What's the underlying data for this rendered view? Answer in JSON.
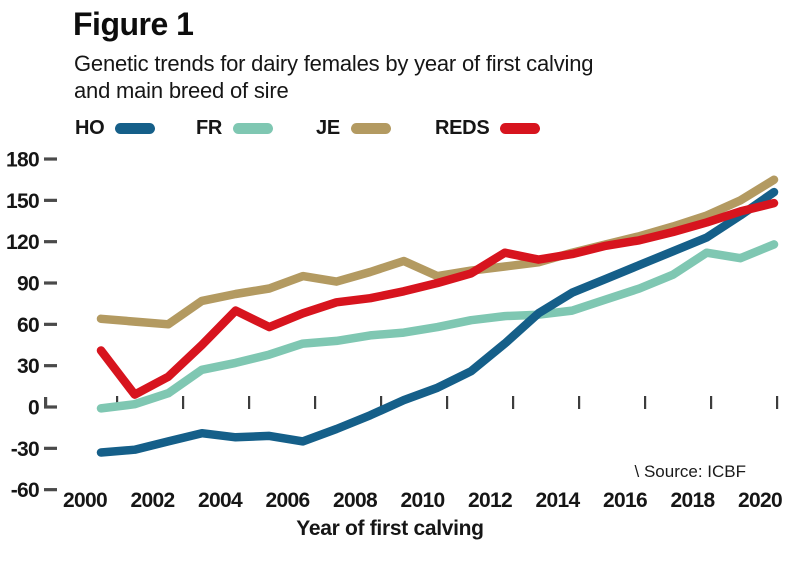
{
  "figure": {
    "label": "Figure 1",
    "subtitle_line1": "Genetic trends for dairy females by year of first calving",
    "subtitle_line2": "and main breed of sire",
    "source": "\\ Source: ICBF"
  },
  "colors": {
    "text": "#161616",
    "tick": "#4a4a4a",
    "ho_blue": "#155f89",
    "fr_teal": "#7fc7b2",
    "je_tan": "#b39a61",
    "reds_red": "#d7141e"
  },
  "chart_data": {
    "type": "line",
    "title": "Genetic trends for dairy females by year of first calving and main breed of sire",
    "xlabel": "Year of first calving",
    "ylabel": "",
    "x": [
      2000,
      2001,
      2002,
      2003,
      2004,
      2005,
      2006,
      2007,
      2008,
      2009,
      2010,
      2011,
      2012,
      2013,
      2014,
      2015,
      2016,
      2017,
      2018,
      2019,
      2020
    ],
    "series": [
      {
        "name": "HO",
        "color": "#155f89",
        "values": [
          -33,
          -31,
          -25,
          -19,
          -22,
          -21,
          -25,
          -16,
          -6,
          5,
          14,
          26,
          46,
          68,
          83,
          93,
          103,
          113,
          123,
          139,
          156
        ]
      },
      {
        "name": "FR",
        "color": "#7fc7b2",
        "values": [
          -1,
          2,
          10,
          27,
          32,
          38,
          46,
          48,
          52,
          54,
          58,
          63,
          66,
          67,
          70,
          78,
          86,
          96,
          112,
          108,
          118
        ]
      },
      {
        "name": "JE",
        "color": "#b39a61",
        "values": [
          64,
          62,
          60,
          77,
          82,
          86,
          95,
          91,
          98,
          106,
          95,
          99,
          102,
          105,
          112,
          118,
          124,
          131,
          139,
          150,
          165
        ]
      },
      {
        "name": "REDS",
        "color": "#d7141e",
        "values": [
          41,
          9,
          22,
          45,
          70,
          58,
          68,
          76,
          79,
          84,
          90,
          97,
          112,
          107,
          111,
          117,
          121,
          127,
          134,
          142,
          148
        ]
      }
    ],
    "x_tick_labels": [
      "2000",
      "2002",
      "2004",
      "2006",
      "2008",
      "2010",
      "2012",
      "2014",
      "2016",
      "2018",
      "2020"
    ],
    "y_ticks": [
      180,
      150,
      120,
      90,
      60,
      30,
      0,
      -30,
      -60
    ],
    "ylim": [
      -60,
      180
    ],
    "xlim": [
      2000,
      2020
    ],
    "grid": false,
    "legend_position": "top",
    "source": "\\ Source: ICBF"
  }
}
